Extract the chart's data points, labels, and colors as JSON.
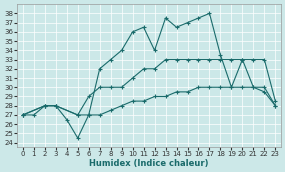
{
  "xlabel": "Humidex (Indice chaleur)",
  "bg_color": "#cce8e8",
  "line_color": "#1a6b6b",
  "grid_color": "#ffffff",
  "xlim": [
    -0.5,
    23.5
  ],
  "ylim": [
    23.5,
    39.0
  ],
  "xticks": [
    0,
    1,
    2,
    3,
    4,
    5,
    6,
    7,
    8,
    9,
    10,
    11,
    12,
    13,
    14,
    15,
    16,
    17,
    18,
    19,
    20,
    21,
    22,
    23
  ],
  "yticks": [
    24,
    25,
    26,
    27,
    28,
    29,
    30,
    31,
    32,
    33,
    34,
    35,
    36,
    37,
    38
  ],
  "line1_x": [
    0,
    1,
    2,
    3,
    4,
    5,
    6,
    7,
    8,
    9,
    10,
    11,
    12,
    13,
    14,
    15,
    16,
    17,
    18,
    19,
    20,
    21,
    22,
    23
  ],
  "line1_y": [
    27,
    27,
    28,
    28,
    26.5,
    24.5,
    27,
    32,
    33,
    34,
    36,
    36.5,
    34,
    37.5,
    36.5,
    37,
    37.5,
    38,
    33.5,
    30,
    33,
    30,
    29.5,
    28
  ],
  "line2_x": [
    0,
    2,
    3,
    5,
    6,
    7,
    8,
    9,
    10,
    11,
    12,
    13,
    14,
    15,
    16,
    17,
    18,
    19,
    20,
    21,
    22,
    23
  ],
  "line2_y": [
    27,
    28,
    28,
    27,
    29,
    30,
    30,
    30,
    31,
    32,
    32,
    33,
    33,
    33,
    33,
    33,
    33,
    33,
    33,
    33,
    33,
    28.5
  ],
  "line3_x": [
    0,
    2,
    3,
    5,
    6,
    7,
    8,
    9,
    10,
    11,
    12,
    13,
    14,
    15,
    16,
    17,
    18,
    19,
    20,
    21,
    22,
    23
  ],
  "line3_y": [
    27,
    28,
    28,
    27,
    27,
    27,
    27.5,
    28,
    28.5,
    28.5,
    29,
    29,
    29.5,
    29.5,
    30,
    30,
    30,
    30,
    30,
    30,
    30,
    28
  ],
  "tick_labelsize": 5,
  "xlabel_fontsize": 6
}
